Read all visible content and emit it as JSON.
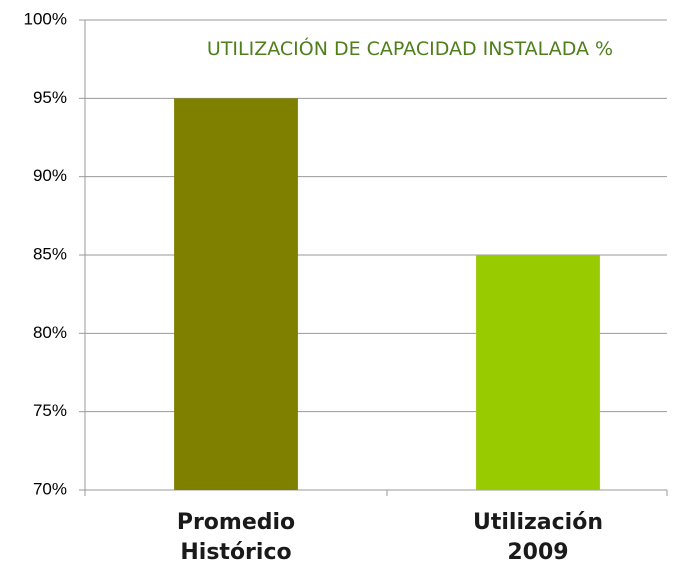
{
  "chart_data": {
    "type": "bar",
    "title": "UTILIZACIÓN DE CAPACIDAD INSTALADA %",
    "categories": [
      "Promedio Histórico",
      "Utilización 2009"
    ],
    "values": [
      95,
      85
    ],
    "colors": [
      "#808000",
      "#99cc00"
    ],
    "ylim": [
      70,
      100
    ],
    "yticks": [
      {
        "value": 70,
        "label": "70%"
      },
      {
        "value": 75,
        "label": "75%"
      },
      {
        "value": 80,
        "label": "80%"
      },
      {
        "value": 85,
        "label": "85%"
      },
      {
        "value": 90,
        "label": "90%"
      },
      {
        "value": 95,
        "label": "95%"
      },
      {
        "value": 100,
        "label": "100%"
      }
    ],
    "grid": true
  }
}
